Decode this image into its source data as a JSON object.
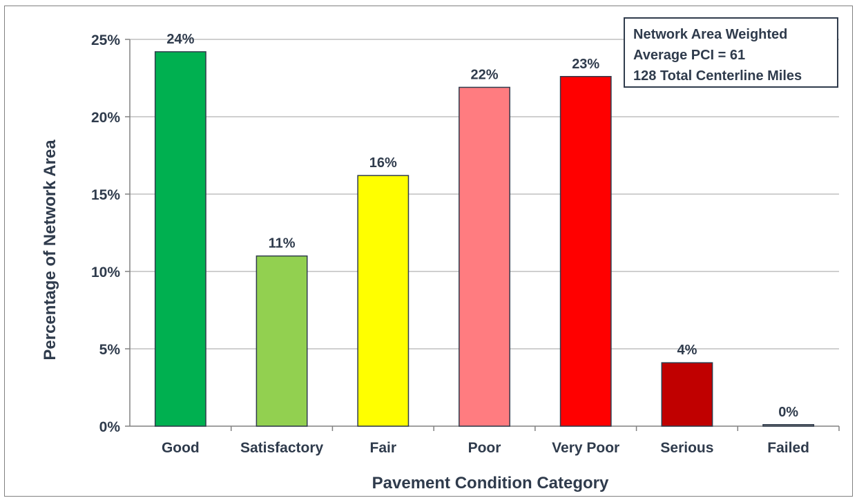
{
  "chart_data": {
    "type": "bar",
    "title": "",
    "xlabel": "Pavement Condition Category",
    "ylabel": "Percentage of Network Area",
    "categories": [
      "Good",
      "Satisfactory",
      "Fair",
      "Poor",
      "Very Poor",
      "Serious",
      "Failed"
    ],
    "values": [
      24.2,
      11.0,
      16.2,
      21.9,
      22.6,
      4.1,
      0.1
    ],
    "data_labels": [
      "24%",
      "11%",
      "16%",
      "22%",
      "23%",
      "4%",
      "0%"
    ],
    "bar_colors": [
      "#00b050",
      "#92d050",
      "#ffff00",
      "#ff7c80",
      "#ff0000",
      "#c00000",
      "#808080"
    ],
    "ylim": [
      0,
      25
    ],
    "yticks": [
      0,
      5,
      10,
      15,
      20,
      25
    ],
    "ytick_labels": [
      "0%",
      "5%",
      "10%",
      "15%",
      "20%",
      "25%"
    ],
    "grid": true,
    "legend": "none",
    "annotation": {
      "lines": [
        "Network Area Weighted",
        "Average PCI = 61",
        "128 Total Centerline Miles"
      ]
    }
  }
}
